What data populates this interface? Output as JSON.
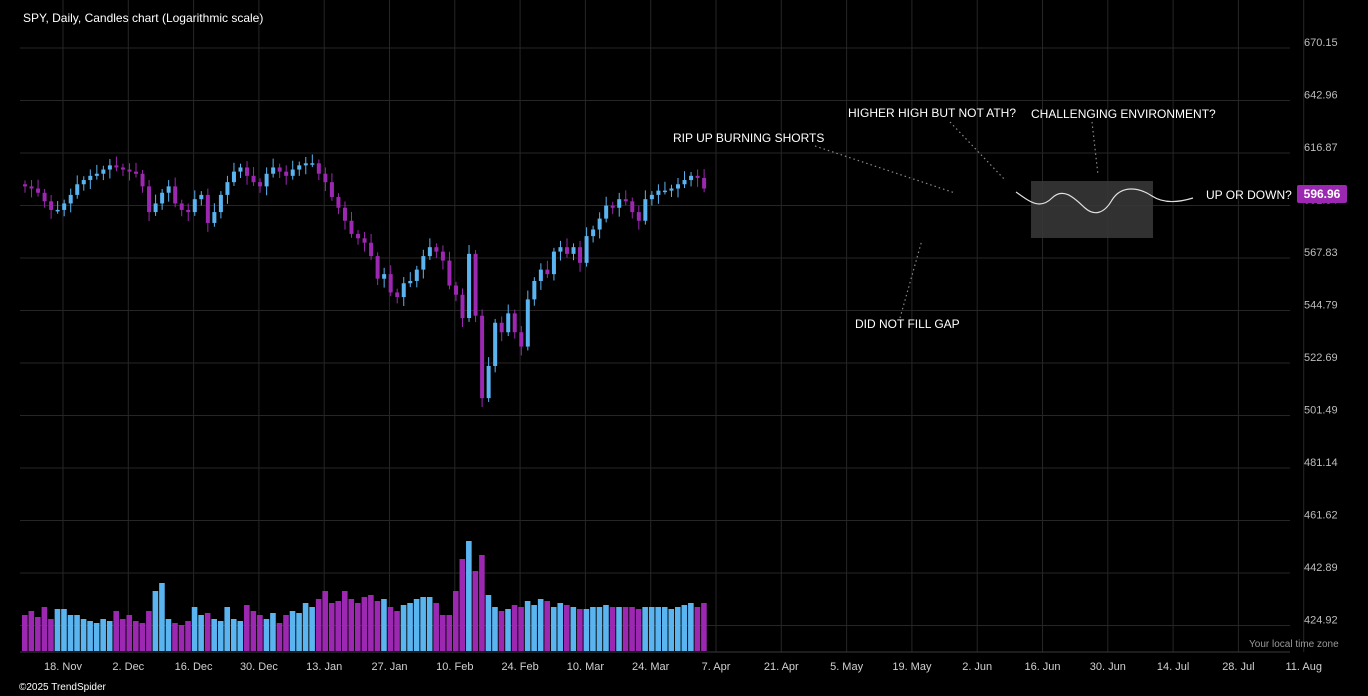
{
  "header": {
    "title": "SPY, Daily, Candles chart (Logarithmic scale)"
  },
  "footer": {
    "copyright": "©2025 TrendSpider",
    "timezone": "Your local time zone"
  },
  "last_price": "596.96",
  "annotations": {
    "rip": "RIP UP BURNING SHORTS",
    "higher_high": "HIGHER HIGH BUT NOT ATH?",
    "challenging": "CHALLENGING ENVIRONMENT?",
    "up_or_down": "UP OR DOWN?",
    "gap": "DID NOT FILL GAP"
  },
  "colors": {
    "up": "#5ab4f0",
    "down": "#9c27b0",
    "grid": "#262626",
    "projection": "#e0e0e0"
  },
  "chart_data": {
    "type": "candlestick",
    "title": "SPY, Daily, Candles chart (Logarithmic scale)",
    "y_scale": "log",
    "y_ticks": [
      "670.15",
      "642.96",
      "616.87",
      "591.84",
      "567.83",
      "544.79",
      "522.69",
      "501.49",
      "481.14",
      "461.62",
      "442.89",
      "424.92"
    ],
    "x_ticks": [
      "18. Nov",
      "2. Dec",
      "16. Dec",
      "30. Dec",
      "13. Jan",
      "27. Jan",
      "10. Feb",
      "24. Feb",
      "10. Mar",
      "24. Mar",
      "7. Apr",
      "21. Apr",
      "5. May",
      "19. May",
      "2. Jun",
      "16. Jun",
      "30. Jun",
      "14. Jul",
      "28. Jul",
      "11. Aug"
    ],
    "series_close": [
      598,
      597,
      595,
      591,
      587,
      587,
      590,
      594,
      599,
      601,
      603,
      604,
      606,
      608,
      607,
      606,
      605,
      604,
      598,
      586,
      590,
      595,
      598,
      590,
      587,
      586,
      592,
      594,
      581,
      586,
      594,
      600,
      605,
      607,
      603,
      600,
      598,
      604,
      607,
      605,
      603,
      606,
      608,
      609,
      609,
      604,
      600,
      593,
      588,
      582,
      576,
      574,
      572,
      566,
      556,
      558,
      550,
      548,
      554,
      555,
      560,
      566,
      570,
      568,
      564,
      553,
      549,
      539,
      567,
      540,
      506,
      519,
      537,
      533,
      541,
      533,
      527,
      547,
      555,
      560,
      558,
      568,
      570,
      567,
      570,
      563,
      575,
      578,
      583,
      589,
      588,
      592,
      591,
      586,
      582,
      592,
      594,
      596,
      596,
      597,
      599,
      601,
      603,
      602,
      597
    ],
    "volume": [
      18,
      20,
      17,
      22,
      16,
      21,
      21,
      18,
      18,
      16,
      15,
      14,
      16,
      15,
      20,
      16,
      18,
      15,
      14,
      20,
      30,
      34,
      16,
      14,
      13,
      15,
      22,
      18,
      19,
      16,
      15,
      22,
      16,
      15,
      23,
      20,
      18,
      16,
      19,
      14,
      18,
      20,
      19,
      24,
      22,
      26,
      30,
      24,
      25,
      30,
      26,
      24,
      27,
      28,
      25,
      26,
      22,
      20,
      23,
      24,
      26,
      27,
      27,
      24,
      18,
      18,
      30,
      46,
      55,
      40,
      48,
      28,
      22,
      20,
      21,
      23,
      22,
      25,
      23,
      26,
      25,
      22,
      24,
      23,
      22,
      21,
      21,
      22,
      22,
      23,
      22,
      22,
      22,
      22,
      21,
      22,
      22,
      22,
      22,
      21,
      22,
      23,
      24,
      22,
      24
    ],
    "projection": {
      "range_label": "UP OR DOWN?"
    }
  }
}
